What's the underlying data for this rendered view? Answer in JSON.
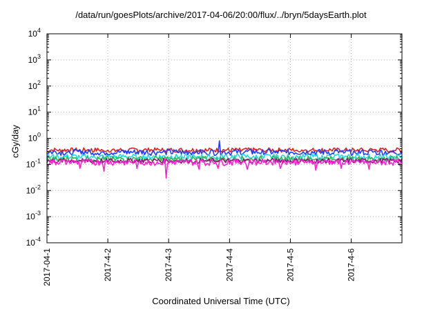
{
  "chart_data": {
    "type": "line",
    "title": "/data/run/goesPlots/archive/2017-04-06/20:00/flux/../bryn/5daysEarth.plot",
    "xlabel": "Coordinated Universal Time (UTC)",
    "ylabel": "cGy/day",
    "yscale": "log",
    "ylim": [
      0.0001,
      10000
    ],
    "y_ticks": [
      {
        "value": 0.0001,
        "base": "10",
        "exp": "-4"
      },
      {
        "value": 0.001,
        "base": "10",
        "exp": "-3"
      },
      {
        "value": 0.01,
        "base": "10",
        "exp": "-2"
      },
      {
        "value": 0.1,
        "base": "10",
        "exp": "-1"
      },
      {
        "value": 1,
        "base": "10",
        "exp": "0"
      },
      {
        "value": 10,
        "base": "10",
        "exp": "1"
      },
      {
        "value": 100,
        "base": "10",
        "exp": "2"
      },
      {
        "value": 1000,
        "base": "10",
        "exp": "3"
      },
      {
        "value": 10000,
        "base": "10",
        "exp": "4"
      }
    ],
    "xlim": [
      "2017-04-01 00:00",
      "2017-04-06 20:00"
    ],
    "x_ticks": [
      "2017-04-1",
      "2017-4-2",
      "2017-4-3",
      "2017-4-4",
      "2017-4-5",
      "2017-4-6"
    ],
    "x_tick_dates": [
      "2017-04-01",
      "2017-04-02",
      "2017-04-03",
      "2017-04-04",
      "2017-04-05",
      "2017-04-06"
    ],
    "grid": true,
    "legend": "none",
    "series": [
      {
        "color": "#e0201c",
        "level": 0.36,
        "amplitude": 0.07,
        "dips": []
      },
      {
        "color": "#1f3cff",
        "level": 0.3,
        "amplitude": 0.08,
        "dips": [
          0.8
        ]
      },
      {
        "color": "#22d8e6",
        "level": 0.2,
        "amplitude": 0.05,
        "dips": []
      },
      {
        "color": "#2fb84a",
        "level": 0.165,
        "amplitude": 0.04,
        "dips": []
      },
      {
        "color": "#8a1470",
        "level": 0.14,
        "amplitude": 0.03,
        "dips": []
      },
      {
        "color": "#ff1fd8",
        "level": 0.125,
        "amplitude": 0.035,
        "dips": [
          0.07,
          0.055,
          0.07,
          0.03,
          0.065,
          0.07,
          0.065,
          0.07,
          0.06,
          0.07,
          0.065
        ]
      }
    ]
  }
}
